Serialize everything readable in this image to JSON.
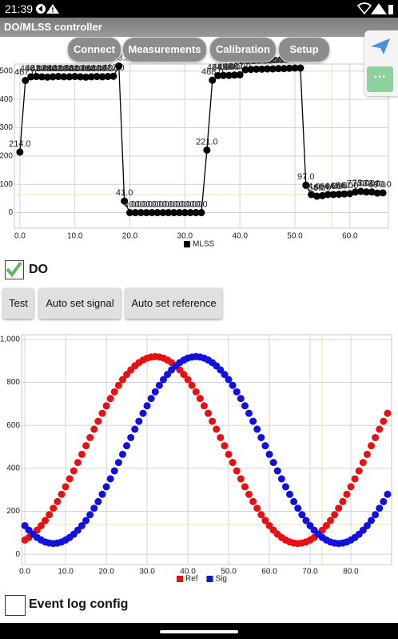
{
  "status_bar": {
    "time": "21:39"
  },
  "app_bar": {
    "title": "DO/MLSS controller",
    "tabs": [
      "Connect",
      "Measurements",
      "Calibration",
      "Setup"
    ]
  },
  "chart_data": [
    {
      "type": "line",
      "x": [
        0,
        1,
        2,
        3,
        4,
        5,
        6,
        7,
        8,
        9,
        10,
        11,
        12,
        13,
        14,
        15,
        16,
        17,
        18,
        19,
        20,
        21,
        22,
        23,
        24,
        25,
        26,
        27,
        28,
        29,
        30,
        31,
        32,
        33,
        34,
        35,
        36,
        37,
        38,
        39,
        40,
        41,
        42,
        43,
        44,
        45,
        46,
        47,
        48,
        49,
        50,
        51,
        52,
        53,
        54,
        55,
        56,
        57,
        58,
        59,
        60,
        61,
        62,
        63,
        64,
        65,
        66
      ],
      "series": [
        {
          "name": "MLSS",
          "color": "#000000",
          "values": [
            214,
            467,
            480,
            481,
            480,
            479,
            480,
            481,
            480,
            480,
            481,
            480,
            479,
            480,
            481,
            480,
            481,
            482,
            518,
            41,
            0,
            0,
            0,
            0,
            0,
            0,
            0,
            0,
            0,
            0,
            0,
            0,
            0,
            0,
            221,
            468,
            484,
            485,
            485,
            486,
            487,
            505,
            506,
            507,
            507,
            508,
            508,
            509,
            509,
            510,
            511,
            511,
            97,
            64,
            58,
            60,
            64,
            64,
            65,
            66,
            67,
            73,
            75,
            73,
            73,
            69,
            70
          ],
          "value_labels": [
            "214.0",
            "467.0",
            "480.0",
            "481.0",
            "480.0",
            "479.0",
            "480.0",
            "481.0",
            "480.0",
            "480.0",
            "481.0",
            "480.0",
            "479.0",
            "480.0",
            "481.0",
            "480.0",
            "481.0",
            "482.0",
            "518.0",
            "41.0",
            "0.0",
            "0.0",
            "0.0",
            "0.0",
            "0.0",
            "0.0",
            "0.0",
            "0.0",
            "0.0",
            "0.0",
            "0.0",
            "0.0",
            "0.0",
            "0.0",
            "221.0",
            "468.0",
            "484.0",
            "485.0",
            "485.0",
            "486.0",
            "487.0",
            "505.0",
            "506.0",
            "507.0",
            "507.0",
            "508.0",
            "508.0",
            "509.0",
            "509.0",
            "510.0",
            "511.0",
            "511.0",
            "97.0",
            "64.0",
            "58.0",
            "60.0",
            "64.0",
            "64.0",
            "65.0",
            "66.0",
            "67.0",
            "73.0",
            "75.0",
            "73.0",
            "73.0",
            "69.0",
            "70.0"
          ]
        }
      ],
      "xlim": [
        -1,
        67
      ],
      "ylim": [
        -55,
        525
      ],
      "xticks": [
        {
          "value": 0,
          "label": "0.0"
        },
        {
          "value": 10,
          "label": "10.0"
        },
        {
          "value": 20,
          "label": "20.0"
        },
        {
          "value": 30,
          "label": "30.0"
        },
        {
          "value": 40,
          "label": "40.0"
        },
        {
          "value": 50,
          "label": "50.0"
        },
        {
          "value": 60,
          "label": "60.0"
        }
      ],
      "yticks": [
        0,
        100,
        200,
        300,
        400,
        500
      ],
      "grid": true
    },
    {
      "type": "scatter",
      "x": [
        0,
        1,
        2,
        3,
        4,
        5,
        6,
        7,
        8,
        9,
        10,
        11,
        12,
        13,
        14,
        15,
        16,
        17,
        18,
        19,
        20,
        21,
        22,
        23,
        24,
        25,
        26,
        27,
        28,
        29,
        30,
        31,
        32,
        33,
        34,
        35,
        36,
        37,
        38,
        39,
        40,
        41,
        42,
        43,
        44,
        45,
        46,
        47,
        48,
        49,
        50,
        51,
        52,
        53,
        54,
        55,
        56,
        57,
        58,
        59,
        60,
        61,
        62,
        63,
        64,
        65,
        66,
        67,
        68,
        69,
        70,
        71,
        72,
        73,
        74,
        75,
        76,
        77,
        78,
        79,
        80,
        81,
        82,
        83,
        84,
        85,
        86,
        87,
        88,
        89
      ],
      "series": [
        {
          "name": "Ref",
          "color": "#e81010",
          "values": [
            66,
            78,
            93,
            112,
            133,
            157,
            184,
            214,
            245,
            279,
            314,
            351,
            388,
            427,
            465,
            505,
            543,
            582,
            619,
            656,
            691,
            725,
            756,
            786,
            813,
            837,
            858,
            877,
            892,
            904,
            913,
            918,
            920,
            918,
            913,
            904,
            892,
            877,
            858,
            837,
            813,
            786,
            756,
            725,
            691,
            656,
            619,
            582,
            543,
            505,
            465,
            427,
            388,
            351,
            314,
            279,
            245,
            214,
            184,
            157,
            133,
            112,
            93,
            78,
            66,
            57,
            52,
            50,
            52,
            57,
            66,
            78,
            93,
            112,
            133,
            157,
            184,
            214,
            245,
            279,
            314,
            351,
            388,
            427,
            465,
            505,
            543,
            582,
            619,
            656
          ]
        },
        {
          "name": "Sig",
          "color": "#1010e0",
          "values": [
            133,
            112,
            93,
            78,
            66,
            57,
            52,
            50,
            52,
            57,
            66,
            78,
            93,
            112,
            133,
            157,
            184,
            214,
            245,
            279,
            314,
            351,
            388,
            427,
            465,
            505,
            543,
            582,
            619,
            656,
            691,
            725,
            756,
            786,
            813,
            837,
            858,
            877,
            892,
            904,
            913,
            918,
            920,
            918,
            913,
            904,
            892,
            877,
            858,
            837,
            813,
            786,
            756,
            725,
            691,
            656,
            619,
            582,
            543,
            505,
            465,
            427,
            388,
            351,
            314,
            279,
            245,
            214,
            184,
            157,
            133,
            112,
            93,
            78,
            66,
            57,
            52,
            50,
            52,
            57,
            66,
            78,
            93,
            112,
            133,
            157,
            184,
            214,
            245,
            279
          ]
        }
      ],
      "xlim": [
        -0.8,
        90
      ],
      "ylim": [
        -48,
        1022
      ],
      "xticks": [
        {
          "value": 0,
          "label": "0.0"
        },
        {
          "value": 10,
          "label": "10.0"
        },
        {
          "value": 20,
          "label": "20.0"
        },
        {
          "value": 30,
          "label": "30.0"
        },
        {
          "value": 40,
          "label": "40.0"
        },
        {
          "value": 50,
          "label": "50.0"
        },
        {
          "value": 60,
          "label": "60.0"
        },
        {
          "value": 70,
          "label": "70.0"
        },
        {
          "value": 80,
          "label": "80.0"
        }
      ],
      "yticks": [
        0,
        200,
        400,
        600,
        800,
        {
          "value": 1000,
          "label": "1,000"
        }
      ],
      "grid": true
    }
  ],
  "do_checkbox": {
    "label": "DO"
  },
  "buttons": [
    "Test",
    "Auto set signal",
    "Auto set reference"
  ],
  "event_log_checkbox": {
    "label": "Event log config"
  }
}
